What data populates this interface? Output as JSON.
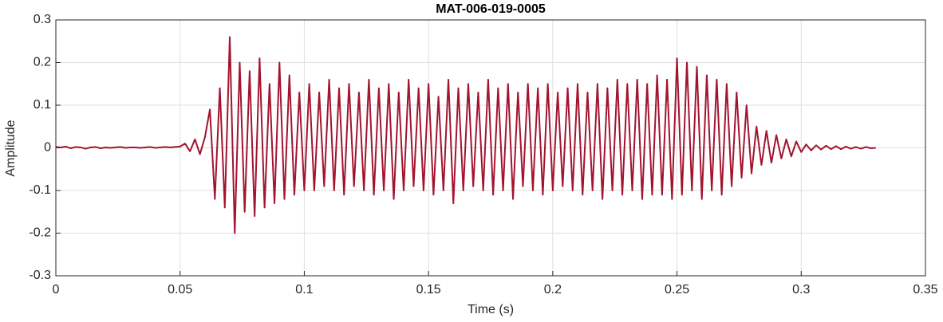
{
  "chart_data": {
    "type": "line",
    "title": "MAT-006-019-0005",
    "xlabel": "Time (s)",
    "ylabel": "Amplitude",
    "color": "#a2142f",
    "grid": true,
    "xlim": [
      0,
      0.35
    ],
    "xticks": [
      0,
      0.05,
      0.1,
      0.15,
      0.2,
      0.25,
      0.3,
      0.35
    ],
    "ylim": [
      -0.3,
      0.3
    ],
    "yticks": [
      -0.3,
      -0.2,
      -0.1,
      0,
      0.1,
      0.2,
      0.3
    ],
    "x": [
      0,
      0.002,
      0.004,
      0.006,
      0.008,
      0.01,
      0.012,
      0.014,
      0.016,
      0.018,
      0.02,
      0.022,
      0.024,
      0.026,
      0.028,
      0.03,
      0.032,
      0.034,
      0.036,
      0.038,
      0.04,
      0.042,
      0.044,
      0.046,
      0.048,
      0.05,
      0.052,
      0.054,
      0.056,
      0.058,
      0.06,
      0.062,
      0.064,
      0.066,
      0.068,
      0.07,
      0.072,
      0.074,
      0.076,
      0.078,
      0.08,
      0.082,
      0.084,
      0.086,
      0.088,
      0.09,
      0.092,
      0.094,
      0.096,
      0.098,
      0.1,
      0.102,
      0.104,
      0.106,
      0.108,
      0.11,
      0.112,
      0.114,
      0.116,
      0.118,
      0.12,
      0.122,
      0.124,
      0.126,
      0.128,
      0.13,
      0.132,
      0.134,
      0.136,
      0.138,
      0.14,
      0.142,
      0.144,
      0.146,
      0.148,
      0.15,
      0.152,
      0.154,
      0.156,
      0.158,
      0.16,
      0.162,
      0.164,
      0.166,
      0.168,
      0.17,
      0.172,
      0.174,
      0.176,
      0.178,
      0.18,
      0.182,
      0.184,
      0.186,
      0.188,
      0.19,
      0.192,
      0.194,
      0.196,
      0.198,
      0.2,
      0.202,
      0.204,
      0.206,
      0.208,
      0.21,
      0.212,
      0.214,
      0.216,
      0.218,
      0.22,
      0.222,
      0.224,
      0.226,
      0.228,
      0.23,
      0.232,
      0.234,
      0.236,
      0.238,
      0.24,
      0.242,
      0.244,
      0.246,
      0.248,
      0.25,
      0.252,
      0.254,
      0.256,
      0.258,
      0.26,
      0.262,
      0.264,
      0.266,
      0.268,
      0.27,
      0.272,
      0.274,
      0.276,
      0.278,
      0.28,
      0.282,
      0.284,
      0.286,
      0.288,
      0.29,
      0.292,
      0.294,
      0.296,
      0.298,
      0.3,
      0.302,
      0.304,
      0.306,
      0.308,
      0.31,
      0.312,
      0.314,
      0.316,
      0.318,
      0.32,
      0.322,
      0.324,
      0.326,
      0.328,
      0.33
    ],
    "values": [
      0.002,
      0.001,
      0.003,
      -0.001,
      0.002,
      0.001,
      -0.002,
      0.001,
      0.002,
      -0.001,
      0.001,
      0,
      0.001,
      0.002,
      0,
      0.001,
      0.001,
      0,
      0.001,
      0.002,
      0,
      0.001,
      0.002,
      0.001,
      0.002,
      0.003,
      0.01,
      -0.008,
      0.02,
      -0.015,
      0.025,
      0.09,
      -0.12,
      0.14,
      -0.14,
      0.26,
      -0.2,
      0.2,
      -0.15,
      0.18,
      -0.16,
      0.21,
      -0.14,
      0.15,
      -0.13,
      0.2,
      -0.12,
      0.17,
      -0.11,
      0.13,
      -0.1,
      0.15,
      -0.1,
      0.13,
      -0.09,
      0.16,
      -0.1,
      0.14,
      -0.11,
      0.15,
      -0.09,
      0.13,
      -0.1,
      0.16,
      -0.11,
      0.14,
      -0.1,
      0.15,
      -0.12,
      0.13,
      -0.1,
      0.16,
      -0.09,
      0.14,
      -0.1,
      0.15,
      -0.11,
      0.12,
      -0.1,
      0.16,
      -0.13,
      0.14,
      -0.1,
      0.15,
      -0.09,
      0.13,
      -0.1,
      0.16,
      -0.11,
      0.14,
      -0.1,
      0.15,
      -0.12,
      0.13,
      -0.09,
      0.15,
      -0.1,
      0.14,
      -0.11,
      0.15,
      -0.1,
      0.13,
      -0.09,
      0.14,
      -0.1,
      0.15,
      -0.11,
      0.13,
      -0.1,
      0.15,
      -0.12,
      0.14,
      -0.1,
      0.16,
      -0.11,
      0.15,
      -0.1,
      0.16,
      -0.12,
      0.15,
      -0.11,
      0.17,
      -0.11,
      0.16,
      -0.12,
      0.21,
      -0.11,
      0.2,
      -0.1,
      0.19,
      -0.12,
      0.17,
      -0.1,
      0.16,
      -0.11,
      0.15,
      -0.09,
      0.13,
      -0.07,
      0.1,
      -0.06,
      0.05,
      -0.04,
      0.04,
      -0.035,
      0.03,
      -0.025,
      0.02,
      -0.02,
      0.015,
      -0.01,
      0.008,
      -0.006,
      0.006,
      -0.004,
      0.005,
      -0.003,
      0.004,
      -0.003,
      0.003,
      -0.002,
      0.002,
      -0.002,
      0.002,
      -0.001,
      0
    ]
  }
}
